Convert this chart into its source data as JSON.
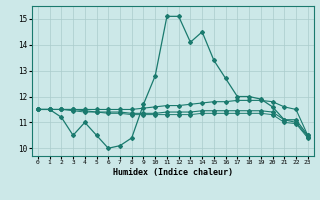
{
  "title": "",
  "xlabel": "Humidex (Indice chaleur)",
  "background_color": "#cce8e8",
  "grid_color": "#aacccc",
  "line_color": "#1a7a6e",
  "x_ticks": [
    0,
    1,
    2,
    3,
    4,
    5,
    6,
    7,
    8,
    9,
    10,
    11,
    12,
    13,
    14,
    15,
    16,
    17,
    18,
    19,
    20,
    21,
    22,
    23
  ],
  "y_ticks": [
    10,
    11,
    12,
    13,
    14,
    15
  ],
  "ylim": [
    9.7,
    15.5
  ],
  "xlim": [
    -0.5,
    23.5
  ],
  "line1": [
    11.5,
    11.5,
    11.2,
    10.5,
    11.0,
    10.5,
    10.0,
    10.1,
    10.4,
    11.7,
    12.8,
    15.1,
    15.1,
    14.1,
    14.5,
    13.4,
    12.7,
    12.0,
    12.0,
    11.9,
    11.6,
    11.1,
    11.1,
    10.5
  ],
  "line2": [
    11.5,
    11.5,
    11.5,
    11.5,
    11.5,
    11.5,
    11.5,
    11.5,
    11.5,
    11.55,
    11.6,
    11.65,
    11.65,
    11.7,
    11.75,
    11.8,
    11.8,
    11.85,
    11.85,
    11.85,
    11.8,
    11.6,
    11.5,
    10.5
  ],
  "line3": [
    11.5,
    11.5,
    11.5,
    11.5,
    11.45,
    11.4,
    11.4,
    11.4,
    11.35,
    11.35,
    11.35,
    11.4,
    11.4,
    11.4,
    11.45,
    11.45,
    11.45,
    11.45,
    11.45,
    11.45,
    11.4,
    11.1,
    11.0,
    10.45
  ],
  "line4": [
    11.5,
    11.5,
    11.5,
    11.45,
    11.4,
    11.4,
    11.35,
    11.35,
    11.3,
    11.3,
    11.3,
    11.3,
    11.3,
    11.3,
    11.35,
    11.35,
    11.35,
    11.35,
    11.35,
    11.35,
    11.3,
    11.0,
    10.95,
    10.4
  ]
}
